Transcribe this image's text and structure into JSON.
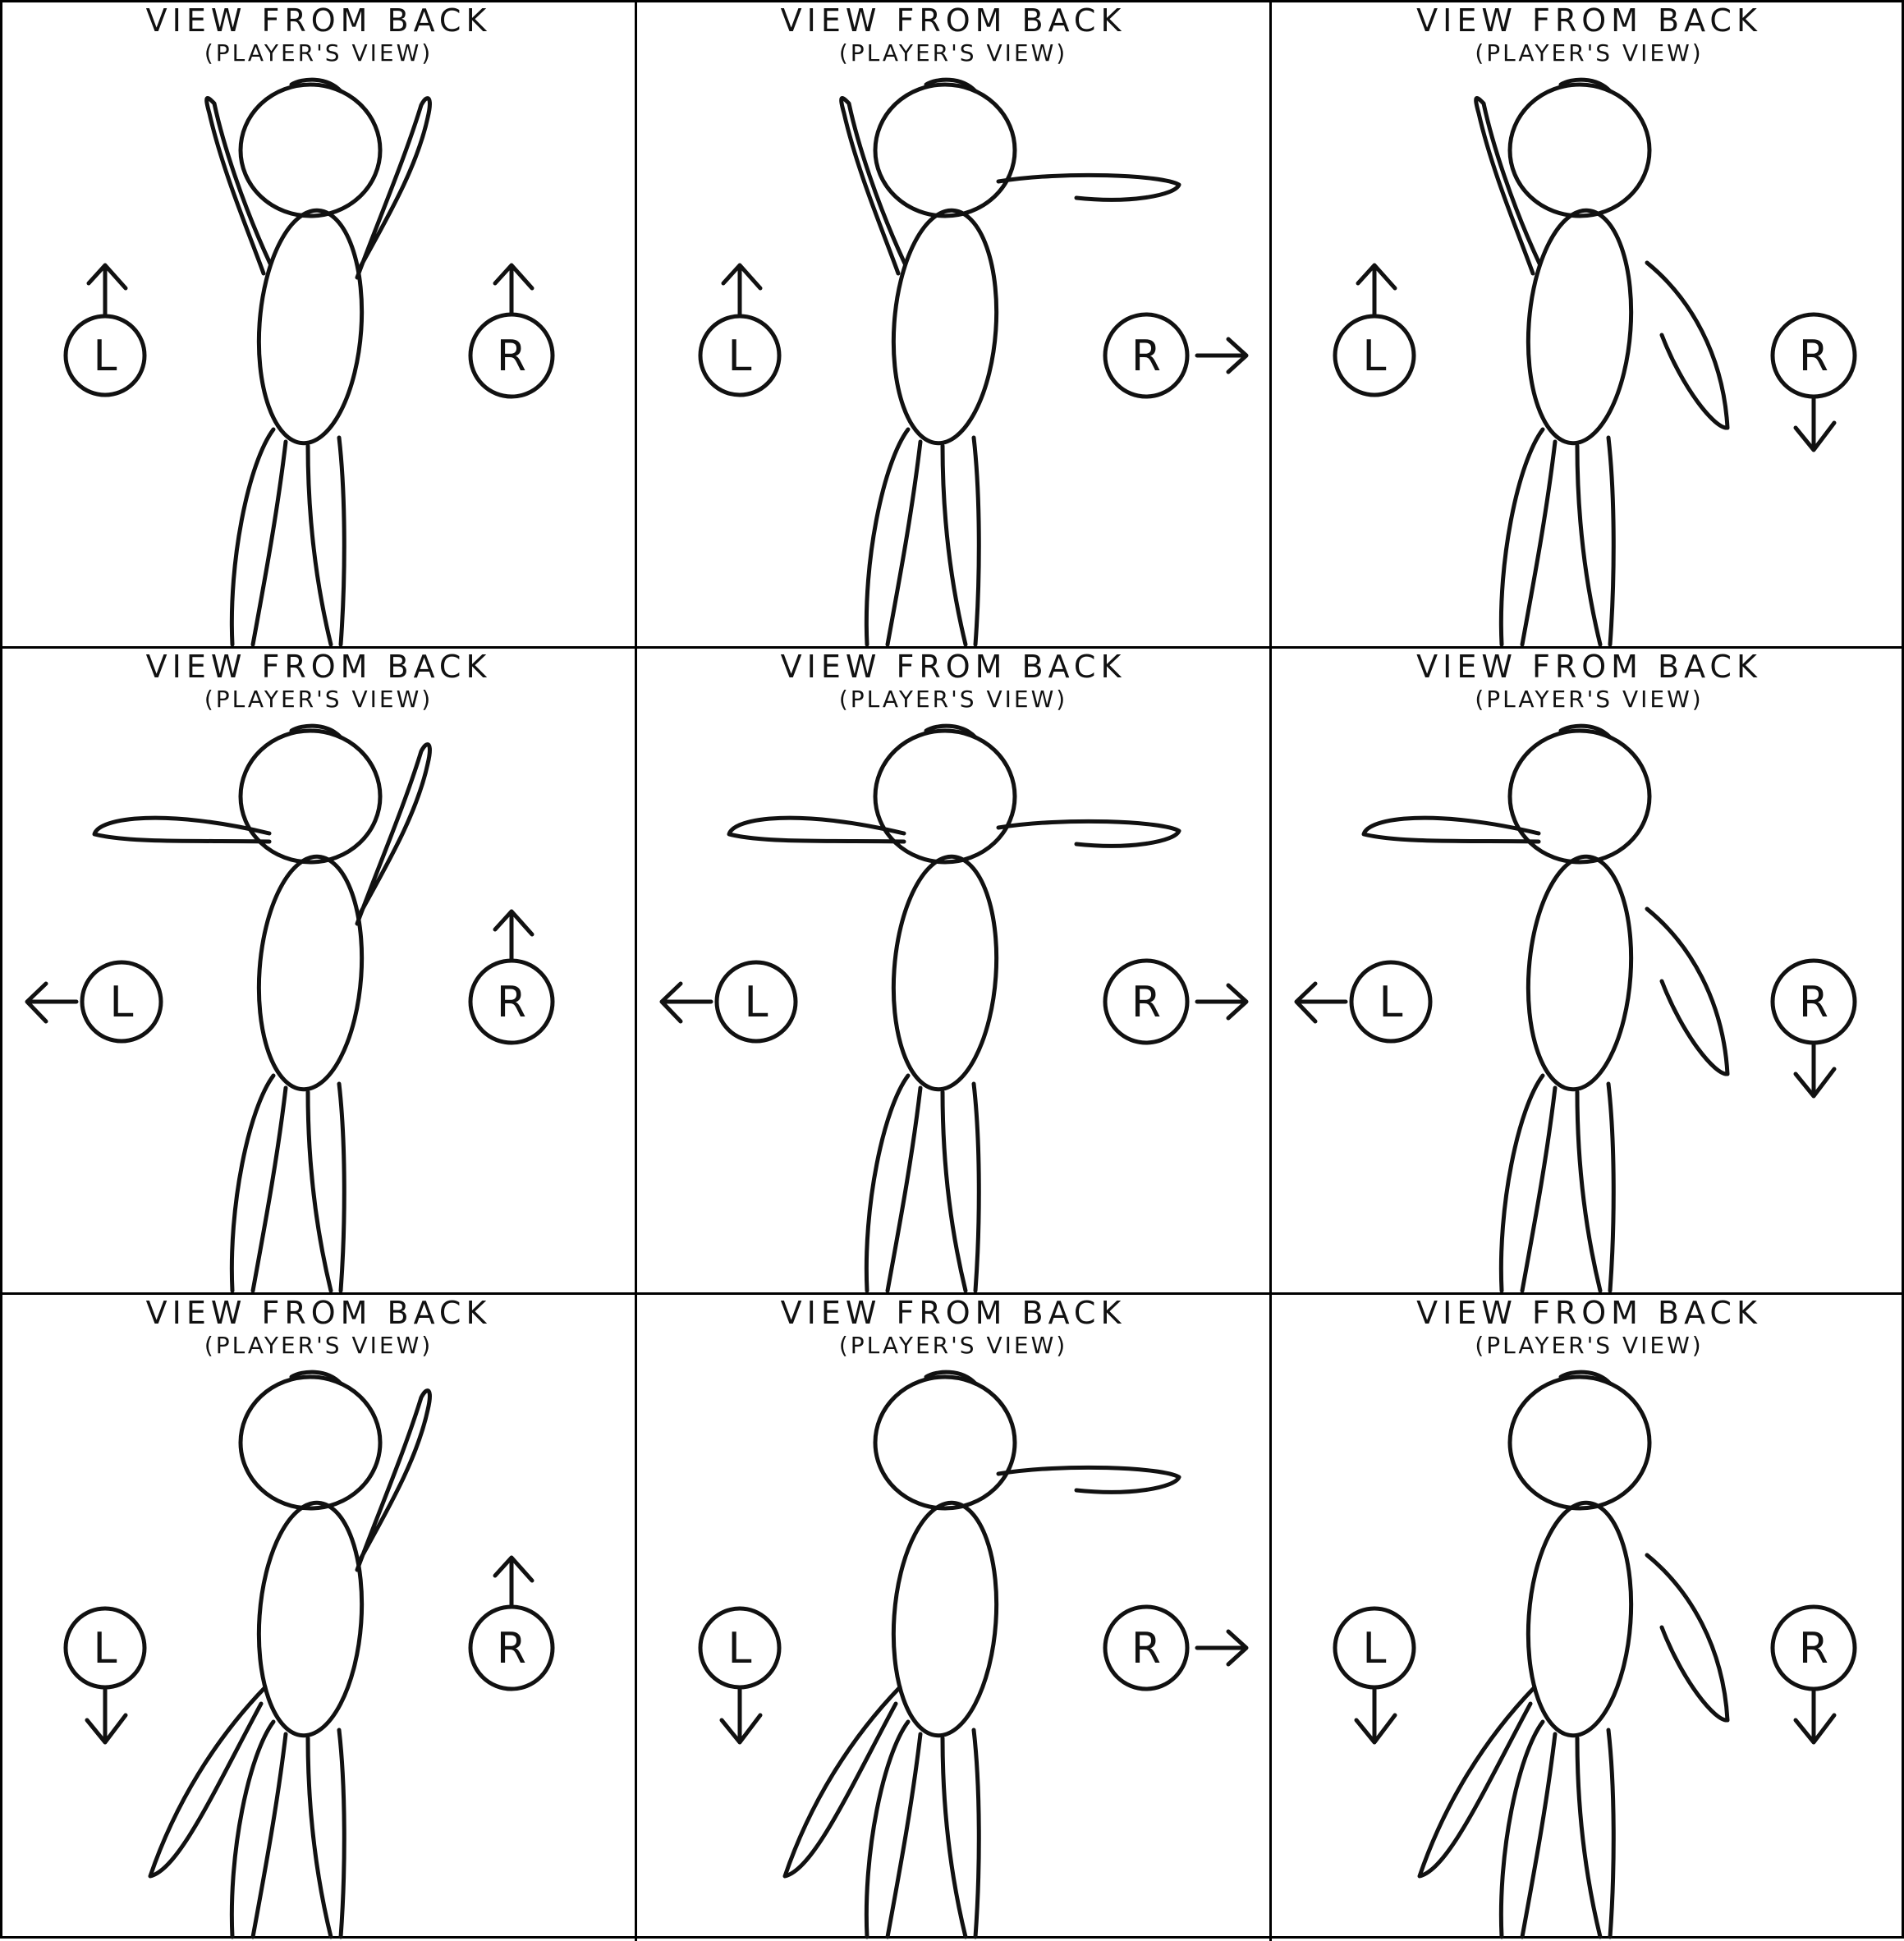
{
  "title_text": "VIEW FROM BACK",
  "subtitle_text": "(PLAYER'S VIEW)",
  "colors": {
    "ink": "#111111",
    "background": "#ffffff"
  },
  "panels": [
    {
      "left_arm": "up",
      "right_arm": "up",
      "left_stick": "up",
      "right_stick": "up",
      "left_label": "L",
      "right_label": "R",
      "left_icon": "arrow-up-icon",
      "right_icon": "arrow-up-icon"
    },
    {
      "left_arm": "up",
      "right_arm": "out",
      "left_stick": "up",
      "right_stick": "right",
      "left_label": "L",
      "right_label": "R",
      "left_icon": "arrow-up-icon",
      "right_icon": "arrow-right-icon"
    },
    {
      "left_arm": "up",
      "right_arm": "down",
      "left_stick": "up",
      "right_stick": "down",
      "left_label": "L",
      "right_label": "R",
      "left_icon": "arrow-up-icon",
      "right_icon": "arrow-down-icon"
    },
    {
      "left_arm": "out",
      "right_arm": "up",
      "left_stick": "left",
      "right_stick": "up",
      "left_label": "L",
      "right_label": "R",
      "left_icon": "arrow-left-icon",
      "right_icon": "arrow-up-icon"
    },
    {
      "left_arm": "out",
      "right_arm": "out",
      "left_stick": "left",
      "right_stick": "right",
      "left_label": "L",
      "right_label": "R",
      "left_icon": "arrow-left-icon",
      "right_icon": "arrow-right-icon"
    },
    {
      "left_arm": "out",
      "right_arm": "down",
      "left_stick": "left",
      "right_stick": "down",
      "left_label": "L",
      "right_label": "R",
      "left_icon": "arrow-left-icon",
      "right_icon": "arrow-down-icon"
    },
    {
      "left_arm": "down",
      "right_arm": "up",
      "left_stick": "down",
      "right_stick": "up",
      "left_label": "L",
      "right_label": "R",
      "left_icon": "arrow-down-icon",
      "right_icon": "arrow-up-icon"
    },
    {
      "left_arm": "down",
      "right_arm": "out",
      "left_stick": "down",
      "right_stick": "right",
      "left_label": "L",
      "right_label": "R",
      "left_icon": "arrow-down-icon",
      "right_icon": "arrow-right-icon"
    },
    {
      "left_arm": "down",
      "right_arm": "down",
      "left_stick": "down",
      "right_stick": "down",
      "left_label": "L",
      "right_label": "R",
      "left_icon": "arrow-down-icon",
      "right_icon": "arrow-down-icon"
    }
  ]
}
